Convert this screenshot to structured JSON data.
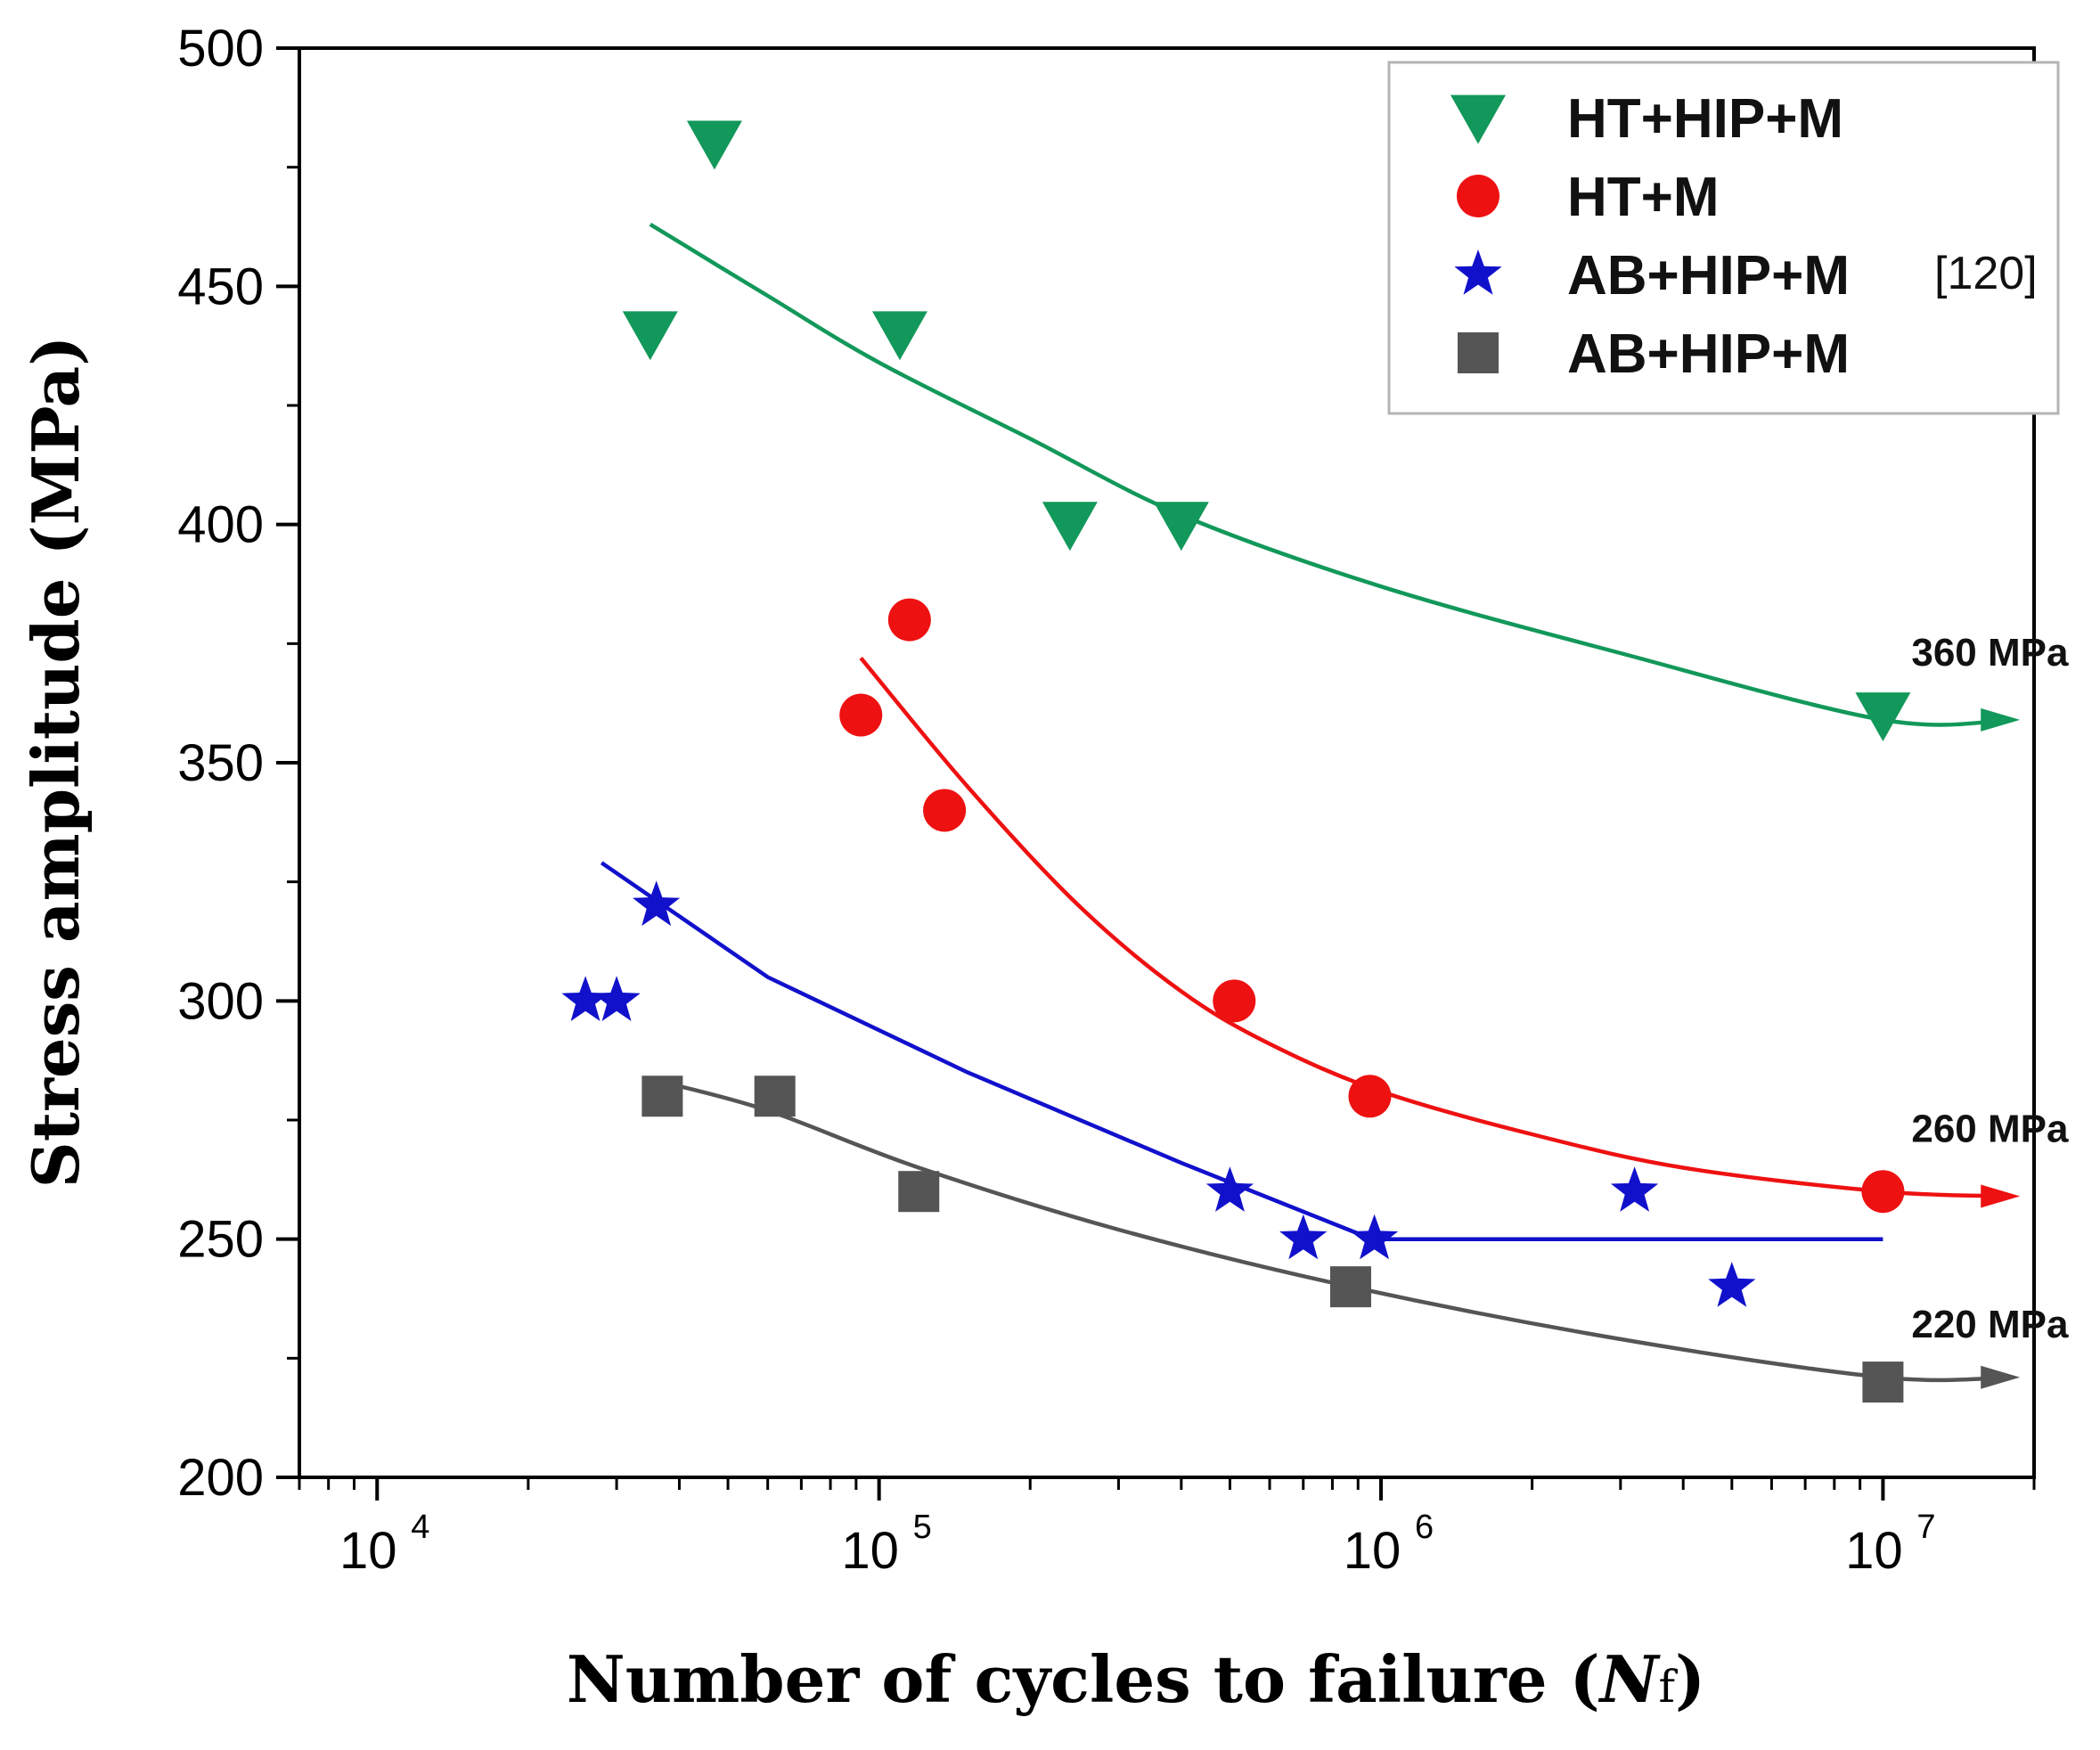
{
  "chart_data": {
    "type": "scatter",
    "title": "",
    "xlabel": "Number of cycles to failure (Nf)",
    "xlabel_parts": {
      "main": "Number of cycles to failure (",
      "italic": "N",
      "sub": "f",
      "end": ")"
    },
    "ylabel": "Stress amplitude (MPa)",
    "xscale": "log",
    "xlim": [
      7000,
      20000000
    ],
    "ylim": [
      200,
      500
    ],
    "x_ticks": [
      {
        "value": 10000,
        "base": "10",
        "exp": "4"
      },
      {
        "value": 100000,
        "base": "10",
        "exp": "5"
      },
      {
        "value": 1000000,
        "base": "10",
        "exp": "6"
      },
      {
        "value": 10000000,
        "base": "10",
        "exp": "7"
      }
    ],
    "y_ticks": [
      "200",
      "250",
      "300",
      "350",
      "400",
      "450",
      "500"
    ],
    "y_tick_values": [
      200,
      250,
      300,
      350,
      400,
      450,
      500
    ],
    "legend_position": "top-right",
    "series": [
      {
        "name": "HT+HIP+M",
        "ref": "",
        "color": "#12985a",
        "marker": "triangle-down",
        "points": [
          [
            35000,
            440
          ],
          [
            47000,
            480
          ],
          [
            110000,
            440
          ],
          [
            240000,
            400
          ],
          [
            400000,
            400
          ],
          [
            10000000,
            360
          ]
        ],
        "fit": [
          [
            35000,
            463
          ],
          [
            60000,
            448
          ],
          [
            100000,
            434
          ],
          [
            200000,
            418
          ],
          [
            400000,
            402
          ],
          [
            1000000,
            387
          ],
          [
            3000000,
            373
          ],
          [
            10000000,
            359
          ],
          [
            18000000,
            359
          ]
        ],
        "runout_label": "360 MPa"
      },
      {
        "name": "HT+M",
        "ref": "",
        "color": "#ee1111",
        "marker": "circle",
        "points": [
          [
            92000,
            360
          ],
          [
            115000,
            380
          ],
          [
            135000,
            340
          ],
          [
            510000,
            300
          ],
          [
            950000,
            280
          ],
          [
            10000000,
            260
          ]
        ],
        "fit": [
          [
            92000,
            372
          ],
          [
            150000,
            345
          ],
          [
            250000,
            320
          ],
          [
            400000,
            302
          ],
          [
            600000,
            291
          ],
          [
            1000000,
            281
          ],
          [
            2000000,
            272
          ],
          [
            4000000,
            265
          ],
          [
            10000000,
            260
          ],
          [
            18000000,
            259
          ]
        ],
        "runout_label": "260 MPa"
      },
      {
        "name": "AB+HIP+M",
        "ref": "[120]",
        "color": "#1111cc",
        "marker": "star",
        "points": [
          [
            26000,
            300
          ],
          [
            30000,
            300
          ],
          [
            36000,
            320
          ],
          [
            500000,
            260
          ],
          [
            700000,
            250
          ],
          [
            970000,
            250
          ],
          [
            3200000,
            260
          ],
          [
            5000000,
            240
          ]
        ],
        "fit": [
          [
            28000,
            329
          ],
          [
            60000,
            305
          ],
          [
            150000,
            285
          ],
          [
            400000,
            266
          ],
          [
            960000,
            250
          ],
          [
            10000000,
            250
          ]
        ],
        "runout_label": ""
      },
      {
        "name": "AB+HIP+M",
        "ref": "",
        "color": "#555555",
        "marker": "square",
        "points": [
          [
            37000,
            280
          ],
          [
            62000,
            280
          ],
          [
            120000,
            260
          ],
          [
            870000,
            240
          ],
          [
            10000000,
            220
          ]
        ],
        "fit": [
          [
            37000,
            283
          ],
          [
            60000,
            277
          ],
          [
            120000,
            265
          ],
          [
            300000,
            252
          ],
          [
            870000,
            240
          ],
          [
            3000000,
            229
          ],
          [
            10000000,
            221
          ],
          [
            18000000,
            221
          ]
        ],
        "runout_label": "220 MPa"
      }
    ],
    "annotations": [
      {
        "text": "360 MPa",
        "x": 10000000,
        "y": 373
      },
      {
        "text": "260 MPa",
        "x": 10000000,
        "y": 273
      },
      {
        "text": "220 MPa",
        "x": 10000000,
        "y": 232
      }
    ]
  }
}
